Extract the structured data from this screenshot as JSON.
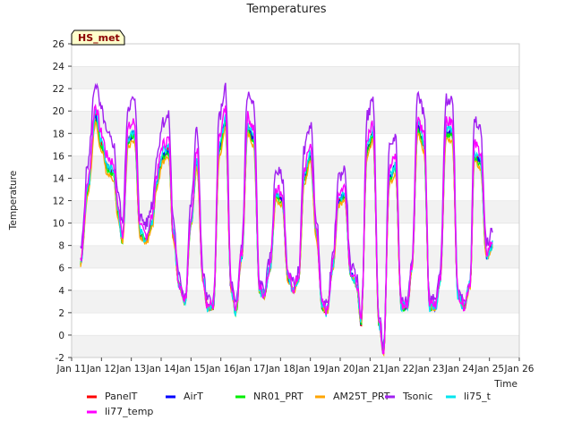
{
  "chart_data": {
    "type": "line",
    "title": "Temperatures",
    "xlabel": "Time",
    "ylabel": "Temperature",
    "badge": "HS_met",
    "xlim": [
      11,
      26
    ],
    "ylim": [
      -2,
      26
    ],
    "x_ticks": [
      11,
      12,
      13,
      14,
      15,
      16,
      17,
      18,
      19,
      20,
      21,
      22,
      23,
      24,
      25,
      26
    ],
    "x_tick_labels": [
      "Jan 11",
      "Jan 12",
      "Jan 13",
      "Jan 14",
      "Jan 15",
      "Jan 16",
      "Jan 17",
      "Jan 18",
      "Jan 19",
      "Jan 20",
      "Jan 21",
      "Jan 22",
      "Jan 23",
      "Jan 24",
      "Jan 25",
      "Jan 26"
    ],
    "y_ticks": [
      -2,
      0,
      2,
      4,
      6,
      8,
      10,
      12,
      14,
      16,
      18,
      20,
      22,
      24,
      26
    ],
    "y_tick_labels": [
      "-2",
      "0",
      "2",
      "4",
      "6",
      "8",
      "10",
      "12",
      "14",
      "16",
      "18",
      "20",
      "22",
      "24",
      "26"
    ],
    "base_x": [
      11.3,
      11.55,
      11.8,
      12.0,
      12.2,
      12.4,
      12.55,
      12.7,
      12.9,
      13.1,
      13.3,
      13.5,
      13.7,
      13.85,
      14.05,
      14.25,
      14.4,
      14.6,
      14.8,
      15.0,
      15.2,
      15.4,
      15.55,
      15.75,
      15.95,
      16.15,
      16.35,
      16.5,
      16.7,
      16.9,
      17.1,
      17.3,
      17.45,
      17.65,
      17.85,
      18.05,
      18.25,
      18.45,
      18.6,
      18.8,
      19.0,
      19.2,
      19.4,
      19.55,
      19.75,
      19.95,
      20.15,
      20.35,
      20.55,
      20.7,
      20.9,
      21.1,
      21.3,
      21.45,
      21.65,
      21.85,
      22.05,
      22.25,
      22.4,
      22.6,
      22.8,
      23.0,
      23.2,
      23.35,
      23.55,
      23.75,
      23.95,
      24.15,
      24.35,
      24.5,
      24.7,
      24.9,
      25.1
    ],
    "base_y": [
      6.5,
      13,
      19.5,
      17,
      15,
      14.5,
      11,
      8.5,
      17.5,
      18,
      9,
      8.5,
      10,
      13.5,
      16,
      16.5,
      9,
      4.5,
      3,
      10,
      15.5,
      5,
      2.5,
      2.5,
      16.5,
      19,
      4,
      2,
      7,
      18.5,
      17.5,
      4,
      3.5,
      6,
      12.5,
      12,
      5,
      4,
      5,
      14,
      16,
      9,
      2.5,
      2,
      6,
      12,
      12.5,
      5.5,
      4.5,
      1,
      16.5,
      18,
      1,
      -1.5,
      14,
      15,
      2.5,
      2.5,
      6,
      18.5,
      17,
      2.5,
      2.5,
      5,
      18,
      18,
      3.5,
      2.5,
      4.5,
      16,
      15.5,
      7,
      8
    ],
    "series": [
      {
        "name": "PanelT",
        "color": "#ff0000",
        "offset": 0.0,
        "noise": 0.3,
        "seed": 1
      },
      {
        "name": "AirT",
        "color": "#0000ff",
        "offset": 0.0,
        "noise": 0.3,
        "seed": 2
      },
      {
        "name": "NR01_PRT",
        "color": "#00ee00",
        "offset": -0.2,
        "noise": 0.3,
        "seed": 3
      },
      {
        "name": "AM25T_PRT",
        "color": "#ffa500",
        "offset": -0.6,
        "noise": 0.25,
        "seed": 4
      },
      {
        "name": "Tsonic",
        "color": "#a020f0",
        "offset": 3.0,
        "noise": 0.6,
        "seed": 5
      },
      {
        "name": "li75_t",
        "color": "#00e5ee",
        "offset": 0.3,
        "noise": 0.5,
        "seed": 6
      },
      {
        "name": "li77_temp",
        "color": "#ff00ff",
        "offset": 1.0,
        "noise": 0.55,
        "seed": 7
      }
    ]
  }
}
